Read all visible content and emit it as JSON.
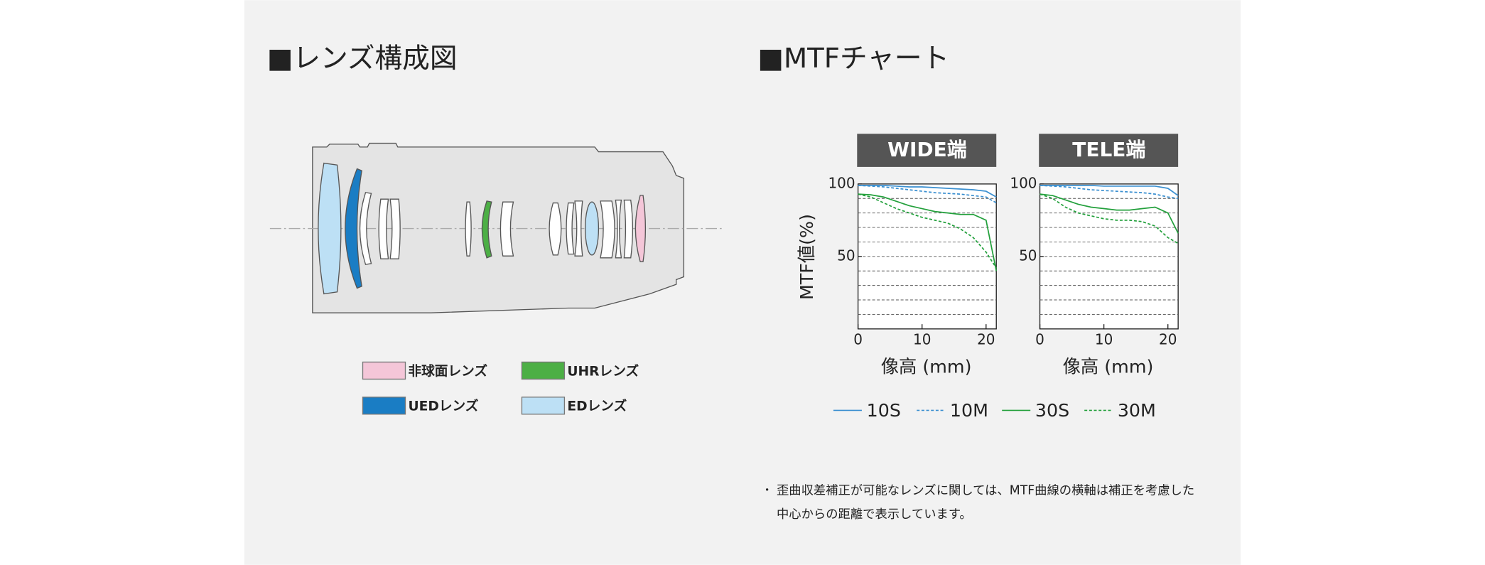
{
  "lens": {
    "title": "■レンズ構成図",
    "legend": [
      {
        "label": "非球面レンズ",
        "color": "#f4c6d8"
      },
      {
        "label": "UHRレンズ",
        "color": "#4caf45"
      },
      {
        "label": "UEDレンズ",
        "color": "#1a7dc4"
      },
      {
        "label": "EDレンズ",
        "color": "#bde0f5"
      }
    ]
  },
  "mtf": {
    "title": "■MTFチャート",
    "ylabel": "MTF値(%)",
    "series": [
      {
        "name": "10S",
        "color": "#3a8fd0",
        "dashed": false
      },
      {
        "name": "10M",
        "color": "#3a8fd0",
        "dashed": true
      },
      {
        "name": "30S",
        "color": "#23a03c",
        "dashed": false
      },
      {
        "name": "30M",
        "color": "#23a03c",
        "dashed": true
      }
    ],
    "charts": [
      {
        "title": "WIDE端",
        "xlabel": "像高 (mm)",
        "xlim": [
          0,
          21.6
        ],
        "ylim": [
          0,
          100
        ],
        "xticks": [
          0,
          10,
          20
        ],
        "yticks": [
          50,
          100
        ],
        "ygrid": [
          10,
          20,
          30,
          40,
          50,
          60,
          70,
          80,
          90
        ],
        "x": [
          0,
          2,
          4,
          6,
          8,
          10,
          12,
          14,
          16,
          18,
          20,
          21.6
        ],
        "series": [
          [
            99,
            99,
            99,
            98.5,
            98,
            98,
            97.5,
            97,
            96.5,
            96,
            95,
            91
          ],
          [
            99,
            98.5,
            98,
            97,
            96,
            95,
            94,
            93.5,
            93,
            92,
            91,
            87
          ],
          [
            93,
            92.5,
            91,
            88,
            85,
            83,
            81,
            80,
            79,
            79,
            75,
            40
          ],
          [
            93,
            91,
            87,
            83,
            80,
            77,
            75,
            73,
            69,
            63,
            53,
            42
          ]
        ]
      },
      {
        "title": "TELE端",
        "xlabel": "像高 (mm)",
        "xlim": [
          0,
          21.6
        ],
        "ylim": [
          0,
          100
        ],
        "xticks": [
          0,
          10,
          20
        ],
        "yticks": [
          50,
          100
        ],
        "ygrid": [
          10,
          20,
          30,
          40,
          50,
          60,
          70,
          80,
          90
        ],
        "x": [
          0,
          2,
          4,
          6,
          8,
          10,
          12,
          14,
          16,
          18,
          20,
          21.6
        ],
        "series": [
          [
            99,
            99,
            99,
            99,
            99,
            98.5,
            98.5,
            98.5,
            98.5,
            98.5,
            97,
            92
          ],
          [
            99,
            98.5,
            98,
            97,
            96,
            95.5,
            95,
            94.5,
            94,
            93,
            91,
            90
          ],
          [
            93,
            92,
            89,
            86,
            84,
            83,
            82,
            82,
            83,
            84,
            80,
            66
          ],
          [
            93,
            90,
            84,
            80,
            78,
            76,
            75,
            75,
            74,
            71,
            63,
            59
          ]
        ]
      }
    ],
    "note": [
      "・",
      "歪曲収差補正が可能なレンズに関しては、MTF曲線の横軸は補正を考慮した",
      "中心からの距離で表示しています。"
    ]
  }
}
